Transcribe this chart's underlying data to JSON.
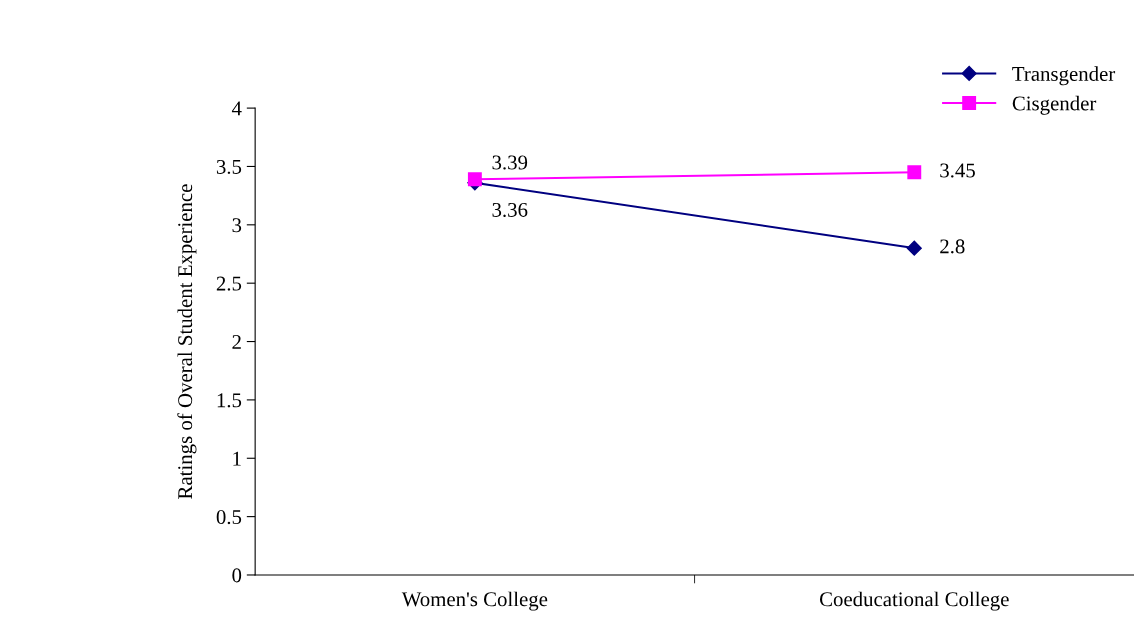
{
  "chart_data": {
    "type": "line",
    "ylabel": "Ratings of Overal Student Experience",
    "categories": [
      "Women's College",
      "Coeducational College"
    ],
    "series": [
      {
        "name": "Transgender",
        "color": "#000080",
        "marker": "diamond",
        "values": [
          3.36,
          2.8
        ],
        "value_labels": [
          "3.36",
          "2.8"
        ]
      },
      {
        "name": "Cisgender",
        "color": "#ff00ff",
        "marker": "square",
        "values": [
          3.39,
          3.45
        ],
        "value_labels": [
          "3.39",
          "3.45"
        ]
      }
    ],
    "ylim": [
      0,
      4
    ],
    "yticks": [
      0,
      0.5,
      1,
      1.5,
      2,
      2.5,
      3,
      3.5,
      4
    ],
    "grid": false,
    "legend": "top right"
  }
}
